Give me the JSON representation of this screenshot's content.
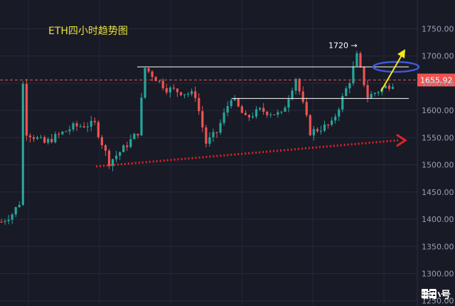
{
  "chart_data": {
    "type": "candlestick",
    "title": "ETH四小时趋势图",
    "ylim": [
      1250,
      1770
    ],
    "y_ticks": [
      1750,
      1700,
      1650,
      1600,
      1550,
      1500,
      1450,
      1400,
      1350,
      1300,
      1250
    ],
    "y_tick_labels": [
      "1750.00",
      "1700.00",
      "1650.00",
      "1600.00",
      "1550.00",
      "1500.00",
      "1450.00",
      "1400.00",
      "1350.00",
      "1300.00",
      "1250.00"
    ],
    "current_price": 1655.92,
    "current_price_label": "1655.92",
    "annotation_high": {
      "text": "1720 →",
      "value": 1720
    },
    "resistance_levels": [
      1680,
      1622
    ],
    "support_trendline": {
      "from_value": 1497,
      "to_value": 1545
    },
    "colors": {
      "up": "#26a69a",
      "down": "#ef5350",
      "price_line": "#ef5350",
      "arrow_up": "#f5e61a",
      "trend_arrow": "#e02424",
      "ellipse": "#3f58d6"
    },
    "candles": []
  },
  "watermark": {
    "text": "非小号"
  }
}
